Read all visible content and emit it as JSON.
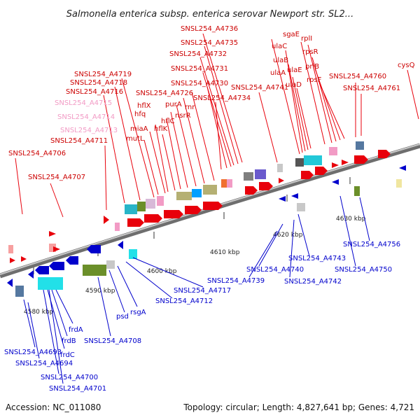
{
  "title": "Salmonella enterica subsp. enterica serovar Newport str. SL2...",
  "footer": {
    "accession": "Accession: NC_011080",
    "summary": "Topology: circular; Length: 4,827,641 bp; Genes: 4,721"
  },
  "ticks": [
    "4580 kbp",
    "4590 kbp",
    "4600 kbp",
    "4610 kbp",
    "4620 kbp",
    "4630 kbp"
  ],
  "colors": {
    "forward": "#e8000b",
    "forward_light": "#f29bc5",
    "reverse": "#0000cc",
    "backbone": "#808080"
  },
  "top_labels": [
    "SNSL254_A4736",
    "SNSL254_A4735",
    "SNSL254_A4732",
    "SNSL254_A4731",
    "SNSL254_A4730",
    "SNSL254_A4741",
    "SNSL254_A4734",
    "SNSL254_A4726",
    "SNSL254_A4719",
    "SNSL254_A4718",
    "SNSL254_A4716",
    "SNSL254_A4715",
    "SNSL254_A4714",
    "SNSL254_A4713",
    "SNSL254_A4711",
    "SNSL254_A4706",
    "SNSL254_A4707",
    "SNSL254_A4760",
    "SNSL254_A4761",
    "sgaE",
    "ulaC",
    "ulaB",
    "ulaA",
    "ulaE",
    "ulaD",
    "rplI",
    "rpsR",
    "priB",
    "rpsF",
    "cysQ",
    "hflX",
    "hfq",
    "miaA",
    "mutL",
    "hflC",
    "hflK",
    "purA",
    "rnr",
    "nsrR"
  ],
  "bottom_labels": [
    "SNSL254_A4756",
    "SNSL254_A4743",
    "SNSL254_A4740",
    "SNSL254_A4739",
    "SNSL254_A4742",
    "SNSL254_A4750",
    "SNSL254_A4717",
    "SNSL254_A4712",
    "rsgA",
    "psd",
    "SNSL254_A4708",
    "frdA",
    "frdB",
    "frdC",
    "SNSL254_A4693",
    "SNSL254_A4694",
    "SNSL254_A4700",
    "SNSL254_A4701"
  ]
}
